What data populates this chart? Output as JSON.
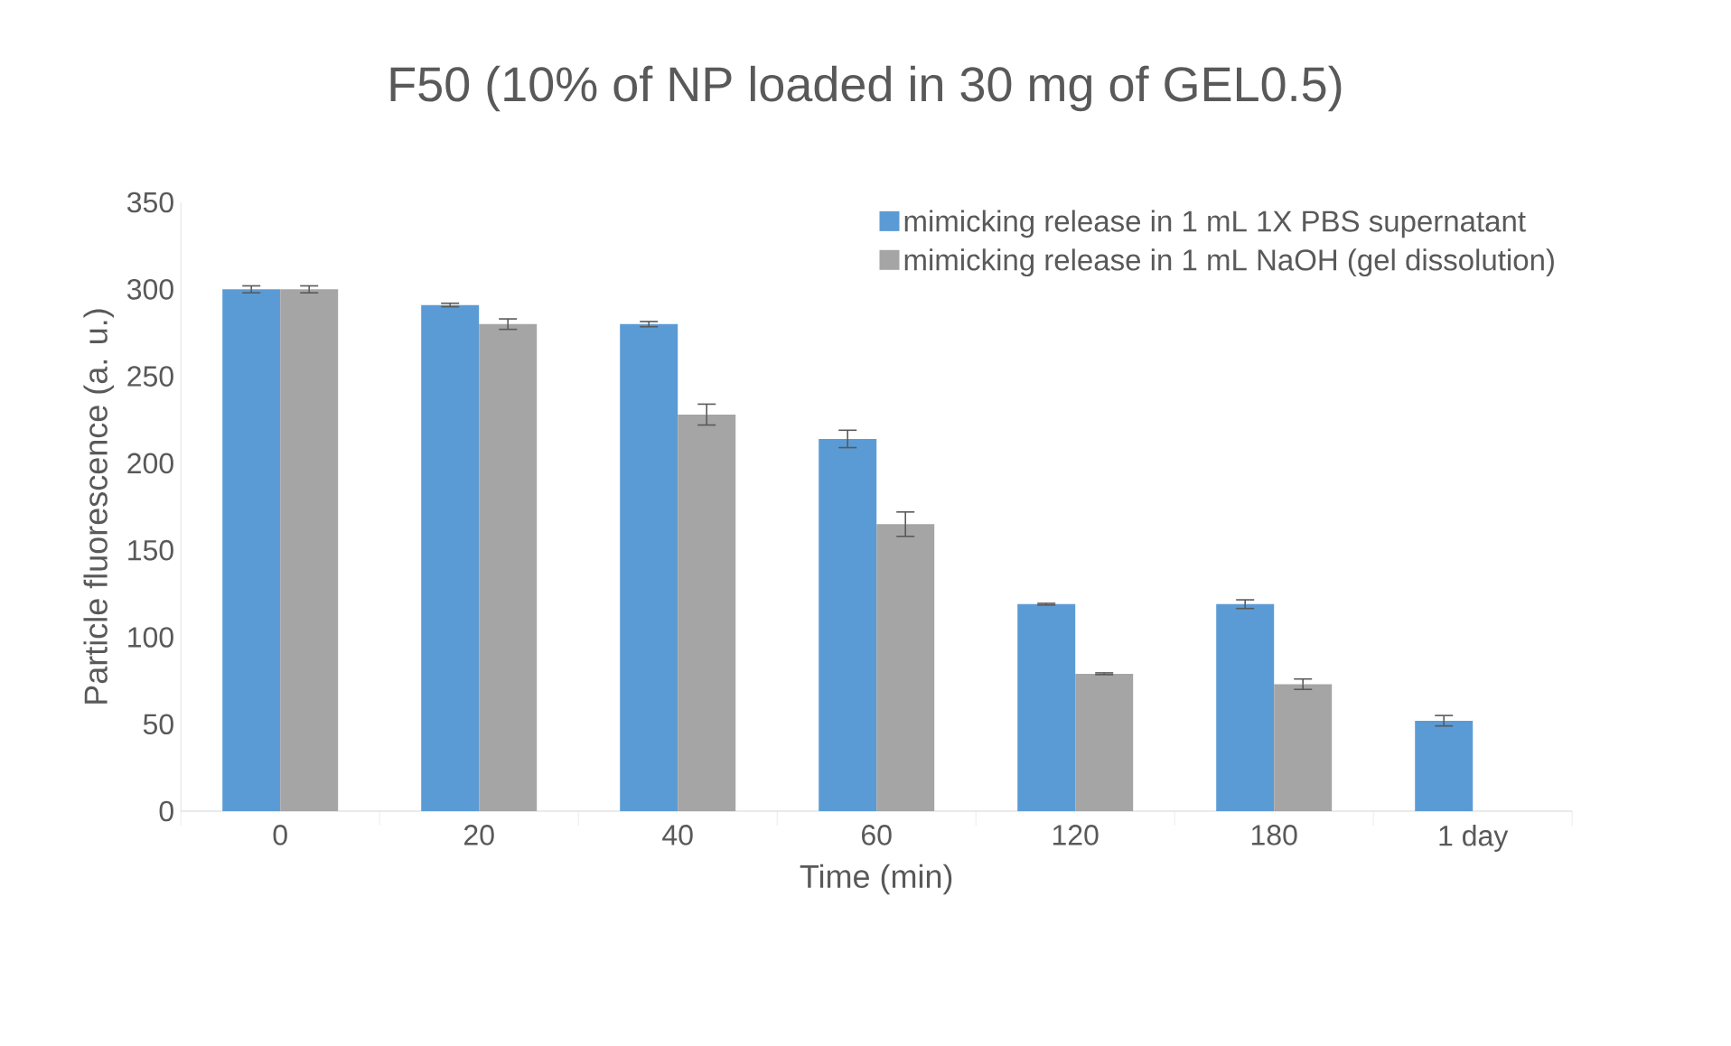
{
  "chart_data": {
    "type": "bar",
    "title": "F50  (10% of NP loaded in 30 mg of GEL0.5)",
    "xlabel": "Time (min)",
    "ylabel": "Particle fluorescence (a. u.)",
    "categories": [
      "0",
      "20",
      "40",
      "60",
      "120",
      "180",
      "1 day"
    ],
    "series": [
      {
        "name": "mimicking release in 1 mL 1X PBS supernatant",
        "color": "#5b9bd5",
        "values": [
          300,
          291,
          280,
          214,
          119,
          119,
          52
        ],
        "errors": [
          2,
          1,
          1.5,
          5,
          0.5,
          2.5,
          3
        ]
      },
      {
        "name": "mimicking release in 1 mL NaOH (gel dissolution)",
        "color": "#a5a5a5",
        "values": [
          300,
          280,
          228,
          165,
          79,
          73,
          null
        ],
        "errors": [
          2,
          3,
          6,
          7,
          0.5,
          3,
          null
        ]
      }
    ],
    "ylim": [
      0,
      350
    ],
    "yticks": [
      0,
      50,
      100,
      150,
      200,
      250,
      300,
      350
    ],
    "grid": false,
    "legend": "top right"
  }
}
